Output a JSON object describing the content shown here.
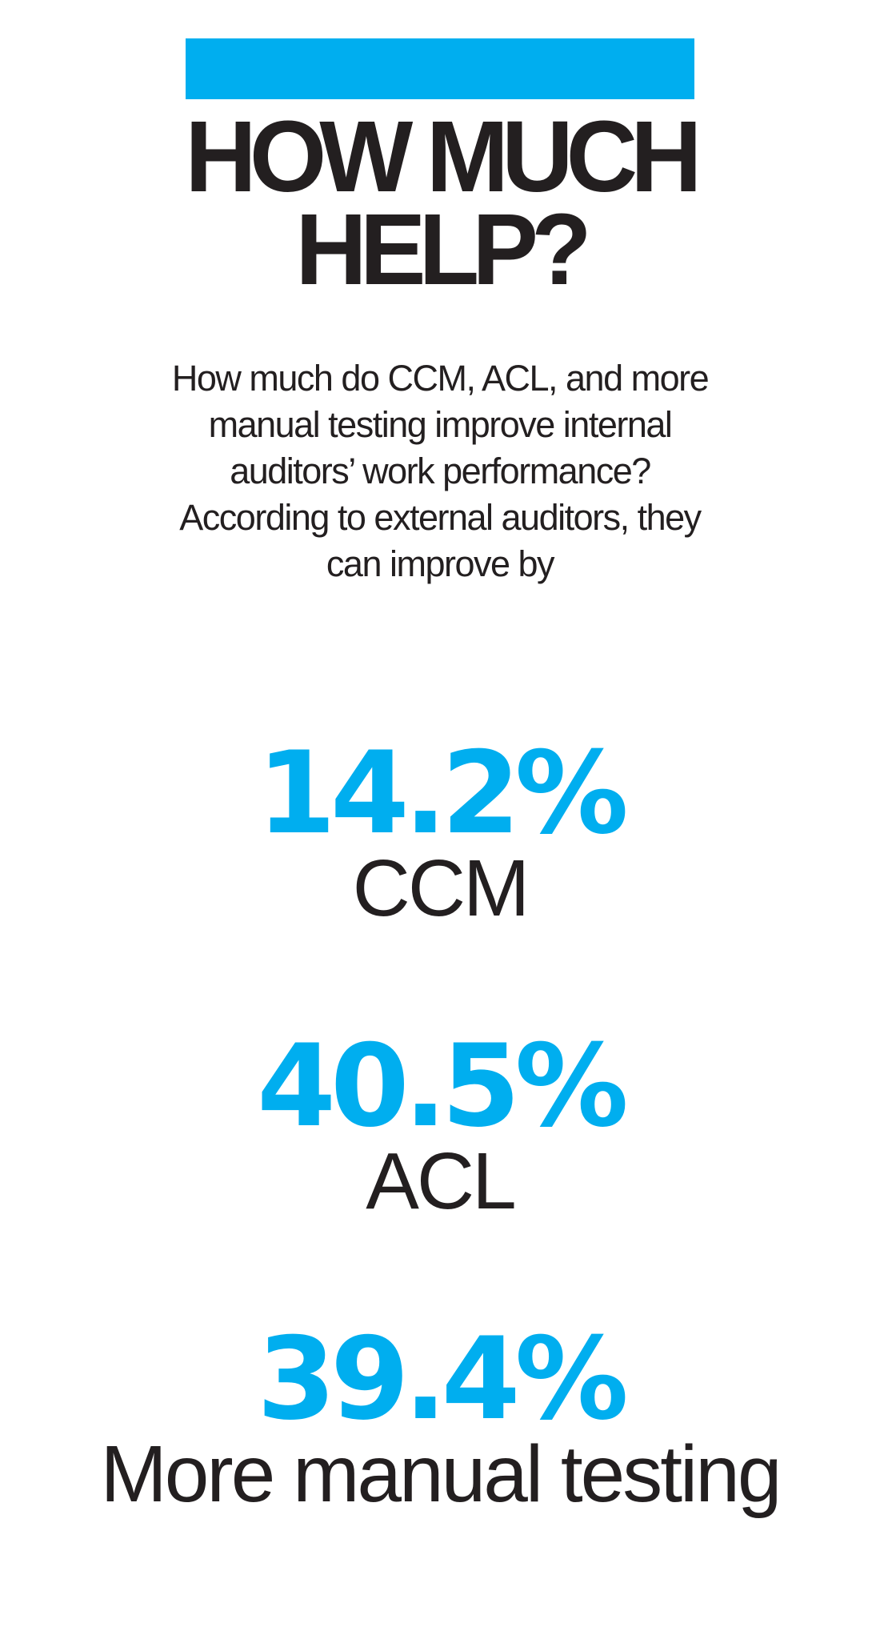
{
  "colors": {
    "accent": "#00aeef",
    "text": "#231f20",
    "background": "#ffffff"
  },
  "header": {
    "headline_line1": "HOW MUCH",
    "headline_line2": "HELP?"
  },
  "intro": {
    "text": "How much do CCM, ACL, and more manual testing improve internal auditors’ work performance? According to external auditors, they can improve by"
  },
  "stats": [
    {
      "value": "14.2%",
      "label": "CCM"
    },
    {
      "value": "40.5%",
      "label": "ACL"
    },
    {
      "value": "39.4%",
      "label": "More manual testing"
    }
  ]
}
